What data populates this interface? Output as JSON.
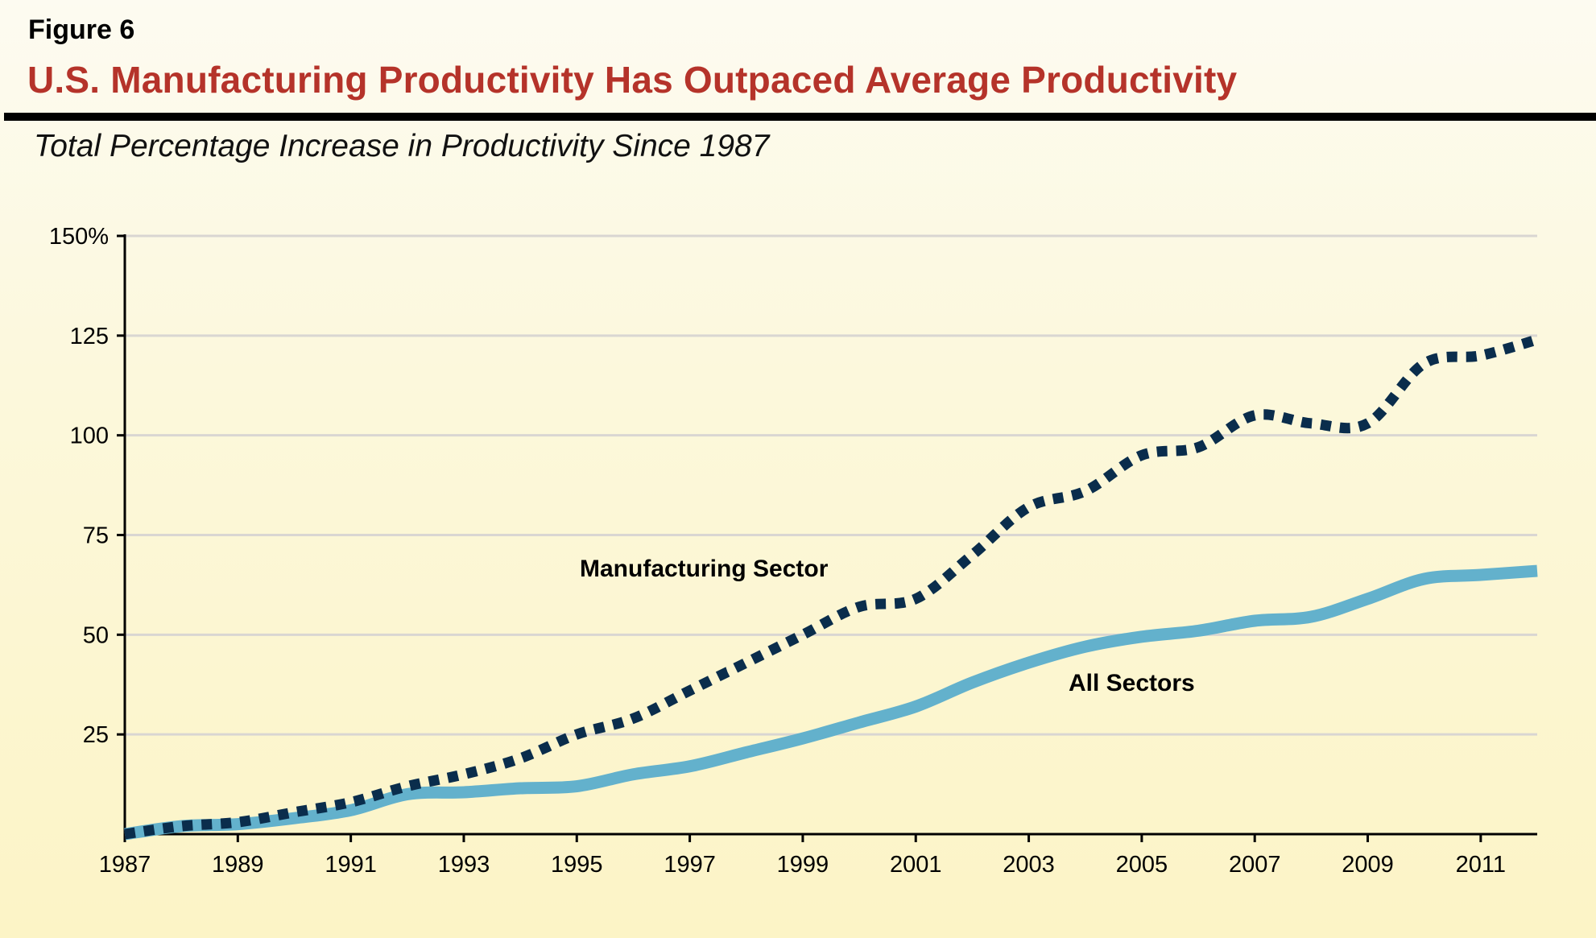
{
  "figure_label": "Figure 6",
  "chart_data": {
    "type": "line",
    "title": "U.S. Manufacturing Productivity Has Outpaced Average Productivity",
    "subtitle": "Total Percentage Increase in Productivity Since 1987",
    "xlabel": "",
    "ylabel": "",
    "x": [
      1987,
      1988,
      1989,
      1990,
      1991,
      1992,
      1993,
      1994,
      1995,
      1996,
      1997,
      1998,
      1999,
      2000,
      2001,
      2002,
      2003,
      2004,
      2005,
      2006,
      2007,
      2008,
      2009,
      2010,
      2011,
      2012
    ],
    "xlim": [
      1987,
      2012
    ],
    "ylim": [
      0,
      150
    ],
    "x_ticks": [
      "1987",
      "1989",
      "1991",
      "1993",
      "1995",
      "1997",
      "1999",
      "2001",
      "2003",
      "2005",
      "2007",
      "2009",
      "2011"
    ],
    "y_ticks": [
      "150%",
      "125",
      "100",
      "75",
      "50",
      "25"
    ],
    "grid": true,
    "series": [
      {
        "name": "Manufacturing Sector",
        "color": "#0a2d4c",
        "style": "dotted",
        "values": [
          0,
          2,
          3,
          5.5,
          8,
          12,
          15,
          19,
          25,
          29,
          36,
          43,
          50,
          57,
          59,
          70,
          82,
          86,
          95,
          97,
          105,
          103,
          103,
          118,
          120,
          124
        ]
      },
      {
        "name": "All Sectors",
        "color": "#63b1cc",
        "style": "solid",
        "values": [
          0,
          2,
          2.5,
          4,
          6,
          10,
          10.5,
          11.5,
          12,
          15,
          17,
          20.5,
          24,
          28,
          32,
          38,
          43,
          47,
          49.5,
          51,
          53.5,
          54.5,
          59,
          64,
          65,
          66
        ]
      }
    ]
  },
  "colors": {
    "title": "#b5332a",
    "grid": "#d9d6d2"
  }
}
